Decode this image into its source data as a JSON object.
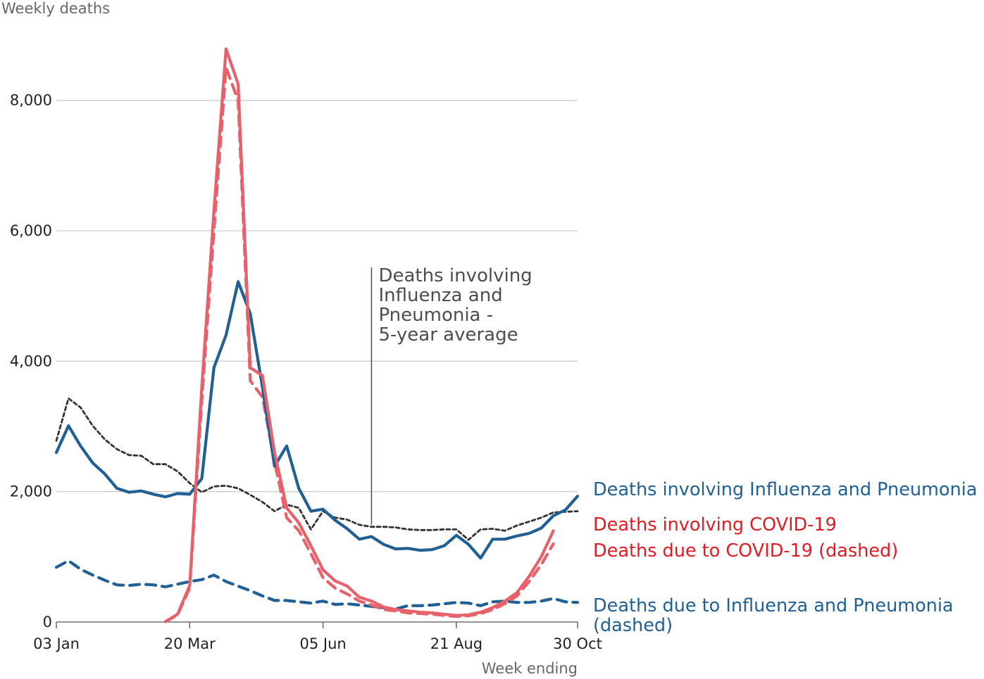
{
  "chart_data": {
    "type": "line",
    "ylabel": "Weekly deaths",
    "xlabel": "Week ending",
    "ylim": [
      0,
      9000
    ],
    "y_ticks": [
      0,
      2000,
      4000,
      6000,
      8000
    ],
    "y_tick_labels": [
      "0",
      "2,000",
      "4,000",
      "6,000",
      "8,000"
    ],
    "x_ticks": [
      1,
      12,
      23,
      34,
      44
    ],
    "x_tick_labels": [
      "03 Jan",
      "20 Mar",
      "05 Jun",
      "21 Aug",
      "30 Oct"
    ],
    "x_week_range": [
      1,
      44
    ],
    "grid": true,
    "annotation": {
      "lines": [
        "Deaths involving",
        "Influenza and",
        "Pneumonia -",
        "5-year average"
      ],
      "week": 27
    },
    "series": [
      {
        "name": "Deaths involving Influenza and Pneumonia",
        "color": "#206095",
        "dash": "solid",
        "start_week": 1,
        "values": [
          2600,
          3010,
          2700,
          2440,
          2270,
          2050,
          1990,
          2010,
          1960,
          1920,
          1970,
          1960,
          2200,
          3900,
          4400,
          5220,
          4730,
          3600,
          2390,
          2700,
          2050,
          1700,
          1730,
          1560,
          1430,
          1270,
          1310,
          1190,
          1120,
          1130,
          1100,
          1110,
          1170,
          1330,
          1190,
          980,
          1270,
          1270,
          1320,
          1360,
          1440,
          1630,
          1720,
          1930
        ]
      },
      {
        "name": "Deaths due to Influenza and Pneumonia (dashed)",
        "color": "#206095",
        "dash": "dashed",
        "start_week": 1,
        "values": [
          840,
          940,
          810,
          720,
          640,
          570,
          560,
          580,
          570,
          540,
          580,
          620,
          650,
          720,
          620,
          550,
          480,
          400,
          330,
          330,
          310,
          290,
          320,
          270,
          280,
          260,
          240,
          220,
          200,
          250,
          250,
          260,
          280,
          300,
          290,
          250,
          310,
          320,
          300,
          300,
          320,
          360,
          310,
          300
        ]
      },
      {
        "name": "Deaths involving COVID-19",
        "color": "#e8606a",
        "dash": "solid",
        "start_week": 10,
        "values": [
          5,
          120,
          560,
          3600,
          6300,
          8790,
          8250,
          3900,
          3780,
          2600,
          1750,
          1520,
          1170,
          800,
          630,
          550,
          380,
          320,
          230,
          190,
          170,
          150,
          140,
          120,
          100,
          110,
          150,
          220,
          320,
          450,
          700,
          1000,
          1400
        ]
      },
      {
        "name": "Deaths due to COVID-19 (dashed)",
        "color": "#e8606a",
        "dash": "dashed",
        "start_week": 10,
        "values": [
          5,
          110,
          520,
          3400,
          6000,
          8500,
          8000,
          3700,
          3450,
          2450,
          1600,
          1400,
          1050,
          680,
          520,
          430,
          320,
          260,
          190,
          170,
          140,
          130,
          120,
          100,
          85,
          95,
          130,
          190,
          280,
          400,
          620,
          880,
          1200
        ]
      },
      {
        "name": "Deaths involving Influenza and Pneumonia - 5-year average",
        "color": "#333333",
        "dash": "dotted",
        "start_week": 1,
        "values": [
          2780,
          3430,
          3290,
          3010,
          2800,
          2650,
          2560,
          2550,
          2420,
          2420,
          2310,
          2130,
          1990,
          2080,
          2090,
          2050,
          1950,
          1840,
          1700,
          1800,
          1750,
          1420,
          1700,
          1600,
          1570,
          1490,
          1460,
          1460,
          1450,
          1420,
          1410,
          1410,
          1420,
          1420,
          1260,
          1420,
          1430,
          1400,
          1480,
          1540,
          1600,
          1680,
          1690,
          1700
        ]
      }
    ],
    "legend": [
      {
        "text": "Deaths involving Influenza and Pneumonia",
        "color": "#206095"
      },
      {
        "text": "Deaths involving COVID-19",
        "color": "#e8606a"
      },
      {
        "text": "Deaths due to COVID-19 (dashed)",
        "color": "#e8606a"
      },
      {
        "text": "Deaths due to Influenza and Pneumonia",
        "color": "#206095"
      },
      {
        "text": "(dashed)",
        "color": "#206095"
      }
    ],
    "legend_placement": "right"
  }
}
